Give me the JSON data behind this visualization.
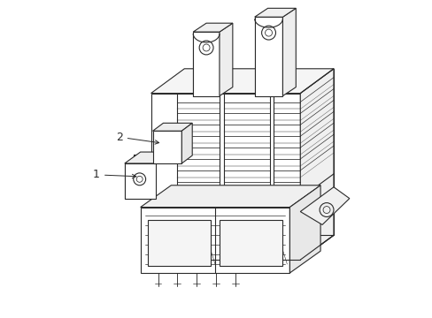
{
  "bg_color": "#ffffff",
  "line_color": "#2a2a2a",
  "line_width": 0.8,
  "label_1": "1",
  "label_2": "2",
  "figsize": [
    4.89,
    3.6
  ],
  "dpi": 100
}
